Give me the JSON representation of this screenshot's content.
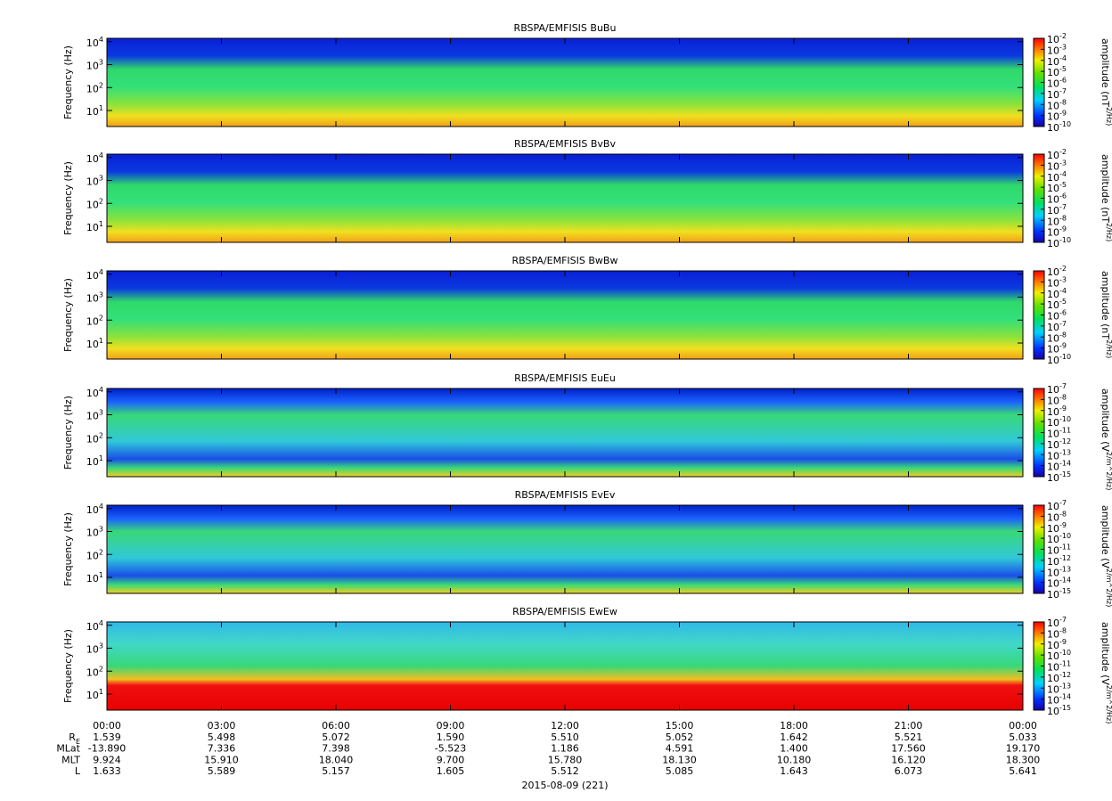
{
  "chart_data": [
    {
      "type": "spectrogram",
      "title": "RBSPA/EMFISIS  BuBu",
      "ylabel": "Frequency (Hz)",
      "ylog": true,
      "ylim": [
        2,
        14000
      ],
      "yticks": [
        {
          "value": 10,
          "label": "10^1"
        },
        {
          "value": 100,
          "label": "10^2"
        },
        {
          "value": 1000,
          "label": "10^3"
        },
        {
          "value": 10000,
          "label": "10^4"
        }
      ],
      "zlabel": "amplitude (nT^2/Hz)",
      "zlog": true,
      "zlim": [
        1e-10,
        0.01
      ],
      "zticks": [
        {
          "value": 0.01,
          "label": "10^-2"
        },
        {
          "value": 0.001,
          "label": "10^-3"
        },
        {
          "value": 0.0001,
          "label": "10^-4"
        },
        {
          "value": 1e-05,
          "label": "10^-5"
        },
        {
          "value": 1e-06,
          "label": "10^-6"
        },
        {
          "value": 1e-07,
          "label": "10^-7"
        },
        {
          "value": 1e-08,
          "label": "10^-8"
        },
        {
          "value": 1e-09,
          "label": "10^-9"
        },
        {
          "value": 1e-10,
          "label": "10^-10"
        }
      ]
    },
    {
      "type": "spectrogram",
      "title": "RBSPA/EMFISIS  BvBv",
      "ylabel": "Frequency (Hz)",
      "ylog": true,
      "ylim": [
        2,
        14000
      ],
      "yticks": [
        {
          "value": 10,
          "label": "10^1"
        },
        {
          "value": 100,
          "label": "10^2"
        },
        {
          "value": 1000,
          "label": "10^3"
        },
        {
          "value": 10000,
          "label": "10^4"
        }
      ],
      "zlabel": "amplitude (nT^2/Hz)",
      "zlog": true,
      "zlim": [
        1e-10,
        0.01
      ],
      "zticks": [
        {
          "value": 0.01,
          "label": "10^-2"
        },
        {
          "value": 0.001,
          "label": "10^-3"
        },
        {
          "value": 0.0001,
          "label": "10^-4"
        },
        {
          "value": 1e-05,
          "label": "10^-5"
        },
        {
          "value": 1e-06,
          "label": "10^-6"
        },
        {
          "value": 1e-07,
          "label": "10^-7"
        },
        {
          "value": 1e-08,
          "label": "10^-8"
        },
        {
          "value": 1e-09,
          "label": "10^-9"
        },
        {
          "value": 1e-10,
          "label": "10^-10"
        }
      ]
    },
    {
      "type": "spectrogram",
      "title": "RBSPA/EMFISIS  BwBw",
      "ylabel": "Frequency (Hz)",
      "ylog": true,
      "ylim": [
        2,
        14000
      ],
      "yticks": [
        {
          "value": 10,
          "label": "10^1"
        },
        {
          "value": 100,
          "label": "10^2"
        },
        {
          "value": 1000,
          "label": "10^3"
        },
        {
          "value": 10000,
          "label": "10^4"
        }
      ],
      "zlabel": "amplitude (nT^2/Hz)",
      "zlog": true,
      "zlim": [
        1e-10,
        0.01
      ],
      "zticks": [
        {
          "value": 0.01,
          "label": "10^-2"
        },
        {
          "value": 0.001,
          "label": "10^-3"
        },
        {
          "value": 0.0001,
          "label": "10^-4"
        },
        {
          "value": 1e-05,
          "label": "10^-5"
        },
        {
          "value": 1e-06,
          "label": "10^-6"
        },
        {
          "value": 1e-07,
          "label": "10^-7"
        },
        {
          "value": 1e-08,
          "label": "10^-8"
        },
        {
          "value": 1e-09,
          "label": "10^-9"
        },
        {
          "value": 1e-10,
          "label": "10^-10"
        }
      ]
    },
    {
      "type": "spectrogram",
      "title": "RBSPA/EMFISIS  EuEu",
      "ylabel": "Frequency (Hz)",
      "ylog": true,
      "ylim": [
        2,
        14000
      ],
      "yticks": [
        {
          "value": 10,
          "label": "10^1"
        },
        {
          "value": 100,
          "label": "10^2"
        },
        {
          "value": 1000,
          "label": "10^3"
        },
        {
          "value": 10000,
          "label": "10^4"
        }
      ],
      "zlabel": "amplitude (V^2/m^2/Hz)",
      "zlog": true,
      "zlim": [
        1e-15,
        1e-07
      ],
      "zticks": [
        {
          "value": 1e-07,
          "label": "10^-7"
        },
        {
          "value": 1e-08,
          "label": "10^-8"
        },
        {
          "value": 1e-09,
          "label": "10^-9"
        },
        {
          "value": 1e-10,
          "label": "10^-10"
        },
        {
          "value": 1e-11,
          "label": "10^-11"
        },
        {
          "value": 1e-12,
          "label": "10^-12"
        },
        {
          "value": 1e-13,
          "label": "10^-13"
        },
        {
          "value": 1e-14,
          "label": "10^-14"
        },
        {
          "value": 1e-15,
          "label": "10^-15"
        }
      ]
    },
    {
      "type": "spectrogram",
      "title": "RBSPA/EMFISIS  EvEv",
      "ylabel": "Frequency (Hz)",
      "ylog": true,
      "ylim": [
        2,
        14000
      ],
      "yticks": [
        {
          "value": 10,
          "label": "10^1"
        },
        {
          "value": 100,
          "label": "10^2"
        },
        {
          "value": 1000,
          "label": "10^3"
        },
        {
          "value": 10000,
          "label": "10^4"
        }
      ],
      "zlabel": "amplitude (V^2/m^2/Hz)",
      "zlog": true,
      "zlim": [
        1e-15,
        1e-07
      ],
      "zticks": [
        {
          "value": 1e-07,
          "label": "10^-7"
        },
        {
          "value": 1e-08,
          "label": "10^-8"
        },
        {
          "value": 1e-09,
          "label": "10^-9"
        },
        {
          "value": 1e-10,
          "label": "10^-10"
        },
        {
          "value": 1e-11,
          "label": "10^-11"
        },
        {
          "value": 1e-12,
          "label": "10^-12"
        },
        {
          "value": 1e-13,
          "label": "10^-13"
        },
        {
          "value": 1e-14,
          "label": "10^-14"
        },
        {
          "value": 1e-15,
          "label": "10^-15"
        }
      ]
    },
    {
      "type": "spectrogram",
      "title": "RBSPA/EMFISIS  EwEw",
      "ylabel": "Frequency (Hz)",
      "ylog": true,
      "ylim": [
        2,
        14000
      ],
      "yticks": [
        {
          "value": 10,
          "label": "10^1"
        },
        {
          "value": 100,
          "label": "10^2"
        },
        {
          "value": 1000,
          "label": "10^3"
        },
        {
          "value": 10000,
          "label": "10^4"
        }
      ],
      "zlabel": "amplitude (V^2/m^2/Hz)",
      "zlog": true,
      "zlim": [
        1e-15,
        1e-07
      ],
      "zticks": [
        {
          "value": 1e-07,
          "label": "10^-7"
        },
        {
          "value": 1e-08,
          "label": "10^-8"
        },
        {
          "value": 1e-09,
          "label": "10^-9"
        },
        {
          "value": 1e-10,
          "label": "10^-10"
        },
        {
          "value": 1e-11,
          "label": "10^-11"
        },
        {
          "value": 1e-12,
          "label": "10^-12"
        },
        {
          "value": 1e-13,
          "label": "10^-13"
        },
        {
          "value": 1e-14,
          "label": "10^-14"
        },
        {
          "value": 1e-15,
          "label": "10^-15"
        }
      ],
      "xlim": [
        0,
        24
      ],
      "xticks": [
        {
          "value": 0,
          "label": "00:00"
        },
        {
          "value": 3,
          "label": "03:00"
        },
        {
          "value": 6,
          "label": "06:00"
        },
        {
          "value": 9,
          "label": "09:00"
        },
        {
          "value": 12,
          "label": "12:00"
        },
        {
          "value": 15,
          "label": "15:00"
        },
        {
          "value": 18,
          "label": "18:00"
        },
        {
          "value": 21,
          "label": "21:00"
        },
        {
          "value": 24,
          "label": "00:00"
        }
      ],
      "ephemeris": [
        {
          "name": "R_E",
          "values": [
            "1.539",
            "5.498",
            "5.072",
            "1.590",
            "5.510",
            "5.052",
            "1.642",
            "5.521",
            "5.033"
          ]
        },
        {
          "name": "MLat",
          "values": [
            "-13.890",
            "7.336",
            "7.398",
            "-5.523",
            "1.186",
            "4.591",
            "1.400",
            "17.560",
            "19.170"
          ]
        },
        {
          "name": "MLT",
          "values": [
            "9.924",
            "15.910",
            "18.040",
            "9.700",
            "15.780",
            "18.130",
            "10.180",
            "16.120",
            "18.300"
          ]
        },
        {
          "name": "L",
          "values": [
            "1.633",
            "5.589",
            "5.157",
            "1.605",
            "5.512",
            "5.085",
            "1.643",
            "6.073",
            "5.641"
          ]
        }
      ],
      "xlabel": "2015-08-09 (221)"
    }
  ]
}
